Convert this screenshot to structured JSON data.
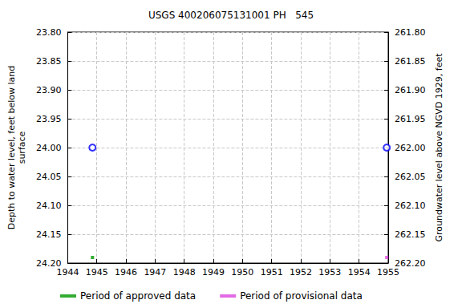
{
  "chart_data": {
    "type": "scatter",
    "title": "USGS 400206075131001 PH   545",
    "x_label": "",
    "y_label": "Depth to water level, feet below land\nsurface",
    "y2_label": "Groundwater level above NGVD 1929, feet",
    "xlim": [
      1944,
      1955
    ],
    "xticks": [
      1944,
      1945,
      1946,
      1947,
      1948,
      1949,
      1950,
      1951,
      1952,
      1953,
      1954,
      1955
    ],
    "ylim": [
      23.8,
      24.2
    ],
    "yticks": [
      {
        "value": 23.8,
        "label": "23.80"
      },
      {
        "value": 23.85,
        "label": "23.85"
      },
      {
        "value": 23.9,
        "label": "23.90"
      },
      {
        "value": 23.95,
        "label": "23.95"
      },
      {
        "value": 24.0,
        "label": "24.00"
      },
      {
        "value": 24.05,
        "label": "24.05"
      },
      {
        "value": 24.1,
        "label": "24.10"
      },
      {
        "value": 24.15,
        "label": "24.15"
      },
      {
        "value": 24.2,
        "label": "24.20"
      }
    ],
    "y2lim": [
      261.8,
      262.2
    ],
    "y2ticks": [
      {
        "value": 261.8,
        "label": "261.80"
      },
      {
        "value": 261.85,
        "label": "261.85"
      },
      {
        "value": 261.9,
        "label": "261.90"
      },
      {
        "value": 261.95,
        "label": "261.95"
      },
      {
        "value": 262.0,
        "label": "262.00"
      },
      {
        "value": 262.05,
        "label": "262.05"
      },
      {
        "value": 262.1,
        "label": "262.10"
      },
      {
        "value": 262.15,
        "label": "262.15"
      },
      {
        "value": 262.2,
        "label": "262.20"
      }
    ],
    "grid": true,
    "legend": "bottom",
    "series": [
      {
        "type": "scatter",
        "color": "#0000ff",
        "marker": "circle",
        "x": [
          1944.85,
          1954.95
        ],
        "values": [
          24.0,
          24.0
        ]
      },
      {
        "type": "period",
        "name": "Period of approved data",
        "color": "#009900",
        "marker": "square",
        "x": [
          1944.85
        ]
      },
      {
        "type": "period",
        "name": "Period of provisional data",
        "color": "#dd44dd",
        "marker": "square",
        "x": [
          1954.95
        ]
      }
    ]
  }
}
